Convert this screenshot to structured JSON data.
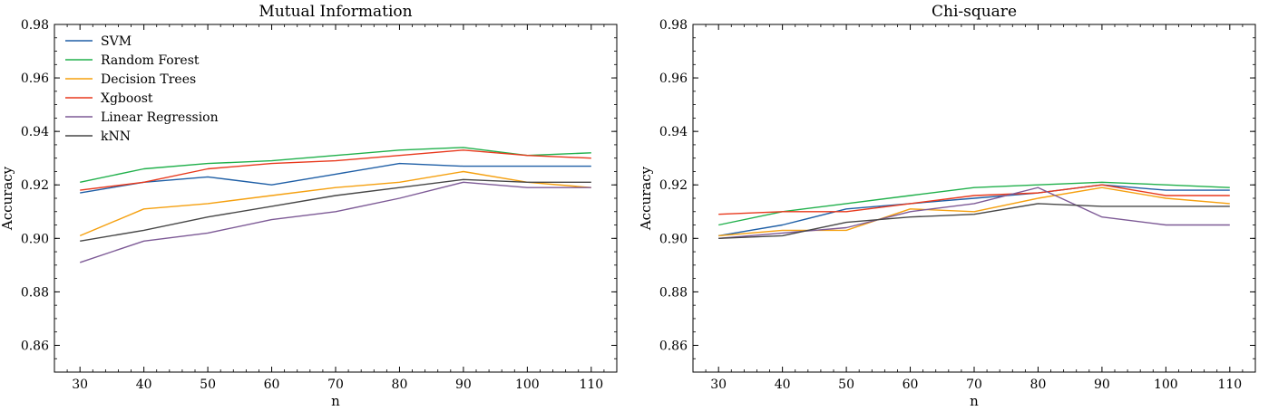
{
  "chart_data": [
    {
      "type": "line",
      "title": "Mutual Information",
      "xlabel": "n",
      "ylabel": "Accuracy",
      "x": [
        30,
        40,
        50,
        60,
        70,
        80,
        90,
        100,
        110
      ],
      "xticks": [
        "30",
        "40",
        "50",
        "60",
        "70",
        "80",
        "90",
        "100",
        "110"
      ],
      "yticks": [
        "0.86",
        "0.88",
        "0.90",
        "0.92",
        "0.94",
        "0.96",
        "0.98"
      ],
      "xlim": [
        26,
        114
      ],
      "ylim": [
        0.85,
        0.98
      ],
      "legend": "upper-left",
      "series": [
        {
          "name": "SVM",
          "color": "#1f5fa6",
          "values": [
            0.917,
            0.921,
            0.923,
            0.92,
            0.924,
            0.928,
            0.927,
            0.927,
            0.927
          ]
        },
        {
          "name": "Random Forest",
          "color": "#20b04b",
          "values": [
            0.921,
            0.926,
            0.928,
            0.929,
            0.931,
            0.933,
            0.934,
            0.931,
            0.932
          ]
        },
        {
          "name": "Decision Trees",
          "color": "#f5a00f",
          "values": [
            0.901,
            0.911,
            0.913,
            0.916,
            0.919,
            0.921,
            0.925,
            0.921,
            0.919
          ]
        },
        {
          "name": "Xgboost",
          "color": "#e8391d",
          "values": [
            0.918,
            0.921,
            0.926,
            0.928,
            0.929,
            0.931,
            0.933,
            0.931,
            0.93
          ]
        },
        {
          "name": "Linear Regression",
          "color": "#7d5a96",
          "values": [
            0.891,
            0.899,
            0.902,
            0.907,
            0.91,
            0.915,
            0.921,
            0.919,
            0.919
          ]
        },
        {
          "name": "kNN",
          "color": "#474747",
          "values": [
            0.899,
            0.903,
            0.908,
            0.912,
            0.916,
            0.919,
            0.922,
            0.921,
            0.921
          ]
        }
      ]
    },
    {
      "type": "line",
      "title": "Chi-square",
      "xlabel": "n",
      "ylabel": "Accuracy",
      "x": [
        30,
        40,
        50,
        60,
        70,
        80,
        90,
        100,
        110
      ],
      "xticks": [
        "30",
        "40",
        "50",
        "60",
        "70",
        "80",
        "90",
        "100",
        "110"
      ],
      "yticks": [
        "0.86",
        "0.88",
        "0.90",
        "0.92",
        "0.94",
        "0.96",
        "0.98"
      ],
      "xlim": [
        26,
        114
      ],
      "ylim": [
        0.85,
        0.98
      ],
      "legend": "none",
      "series": [
        {
          "name": "SVM",
          "color": "#1f5fa6",
          "values": [
            0.901,
            0.905,
            0.911,
            0.913,
            0.915,
            0.917,
            0.92,
            0.918,
            0.918
          ]
        },
        {
          "name": "Random Forest",
          "color": "#20b04b",
          "values": [
            0.905,
            0.91,
            0.913,
            0.916,
            0.919,
            0.92,
            0.921,
            0.92,
            0.919
          ]
        },
        {
          "name": "Decision Trees",
          "color": "#f5a00f",
          "values": [
            0.901,
            0.903,
            0.903,
            0.911,
            0.91,
            0.915,
            0.919,
            0.915,
            0.913
          ]
        },
        {
          "name": "Xgboost",
          "color": "#e8391d",
          "values": [
            0.909,
            0.91,
            0.91,
            0.913,
            0.916,
            0.917,
            0.92,
            0.916,
            0.916
          ]
        },
        {
          "name": "Linear Regression",
          "color": "#7d5a96",
          "values": [
            0.9,
            0.902,
            0.904,
            0.91,
            0.913,
            0.919,
            0.908,
            0.905,
            0.905
          ]
        },
        {
          "name": "kNN",
          "color": "#474747",
          "values": [
            0.9,
            0.901,
            0.906,
            0.908,
            0.909,
            0.913,
            0.912,
            0.912,
            0.912
          ]
        }
      ]
    }
  ]
}
